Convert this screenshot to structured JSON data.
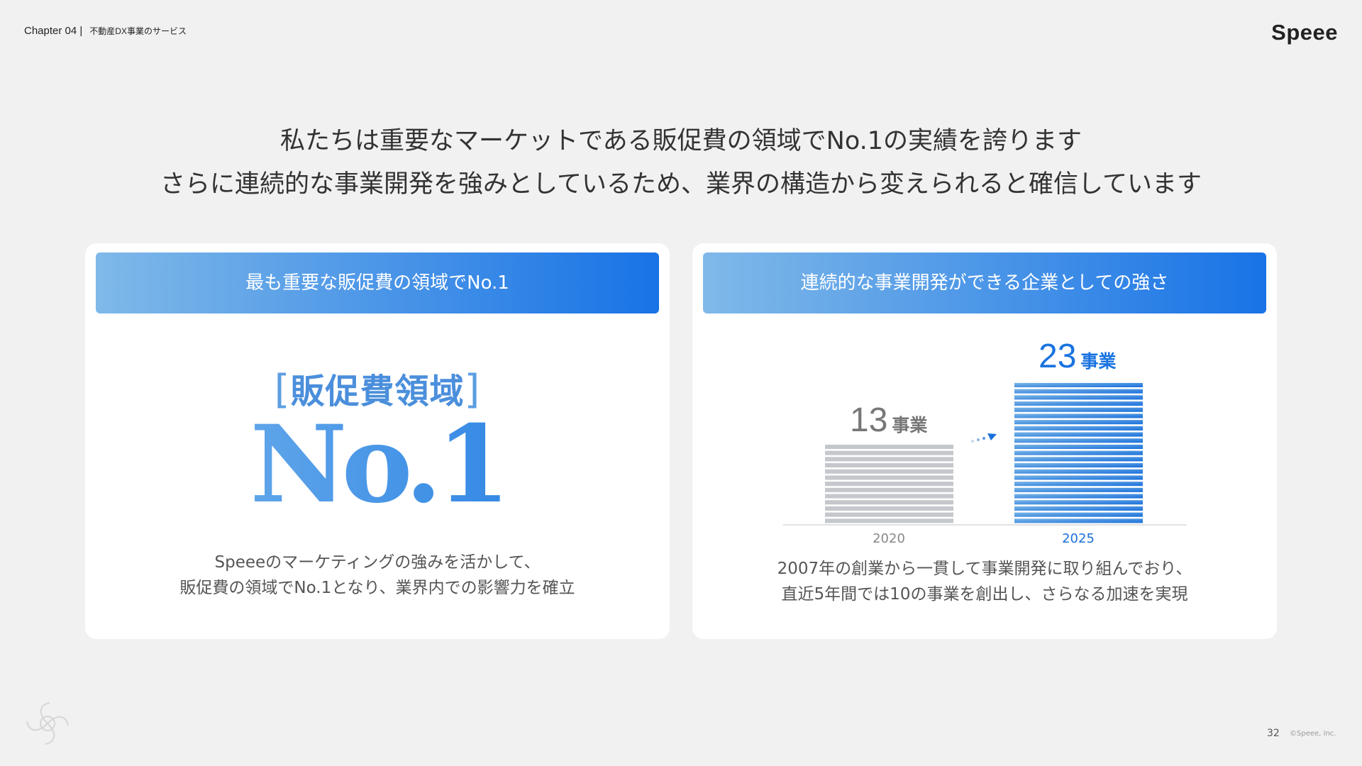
{
  "header": {
    "chapter": "Chapter 04",
    "separator": "|",
    "section": "不動産DX事業のサービス",
    "logo": "Speee"
  },
  "headline": {
    "line1": "私たちは重要なマーケットである販促費の領域でNo.1の実績を誇ります",
    "line2": "さらに連続的な事業開発を強みとしているため、業界の構造から変えられると確信しています"
  },
  "left_card": {
    "title": "最も重要な販促費の領域でNo.1",
    "field": "販促費領域",
    "bracket_open": "[",
    "bracket_close": "]",
    "rank": "No.1",
    "desc1": "Speeeのマーケティングの強みを活かして、",
    "desc2": "販促費の領域でNo.1となり、業界内での影響力を確立"
  },
  "right_card": {
    "title": "連続的な事業開発ができる企業としての強さ",
    "desc1": "2007年の創業から一貫して事業開発に取り組んでおり、",
    "desc2": "直近5年間では10の事業を創出し、さらなる加速を実現"
  },
  "chart_data": {
    "type": "bar",
    "categories": [
      "2020",
      "2025"
    ],
    "values": [
      13,
      23
    ],
    "unit": "事業",
    "colors": [
      "#c4c8cc",
      "#2a7be0"
    ]
  },
  "footer": {
    "page": "32",
    "copyright": "©Speee, Inc."
  }
}
